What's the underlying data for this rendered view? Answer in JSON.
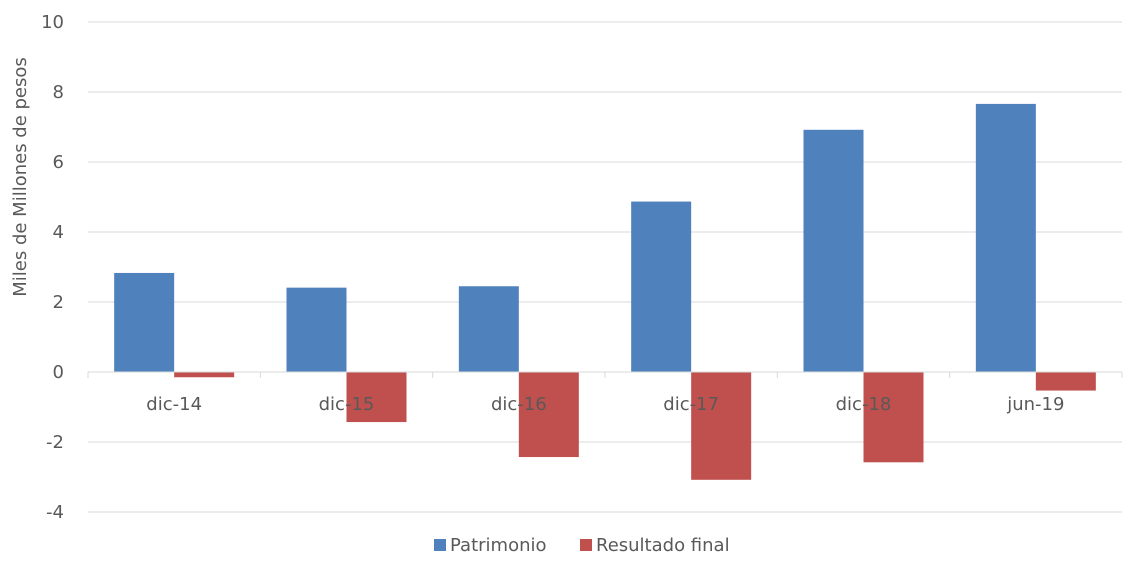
{
  "chart_data": {
    "type": "bar",
    "categories": [
      "dic-14",
      "dic-15",
      "dic-16",
      "dic-17",
      "dic-18",
      "jun-19"
    ],
    "series": [
      {
        "name": "Patrimonio",
        "values": [
          2.83,
          2.41,
          2.45,
          4.87,
          6.92,
          7.66
        ],
        "color": "#4f81bd"
      },
      {
        "name": "Resultado final",
        "values": [
          -0.15,
          -1.43,
          -2.43,
          -3.08,
          -2.58,
          -0.53
        ],
        "color": "#c0504d"
      }
    ],
    "title": "",
    "xlabel": "",
    "ylabel": "Miles de Millones de pesos",
    "ylim": [
      -4,
      10
    ],
    "yticks": [
      "-4",
      "-2",
      "0",
      "2",
      "4",
      "6",
      "8",
      "10"
    ],
    "grid": true,
    "legend": "bottom-center"
  }
}
